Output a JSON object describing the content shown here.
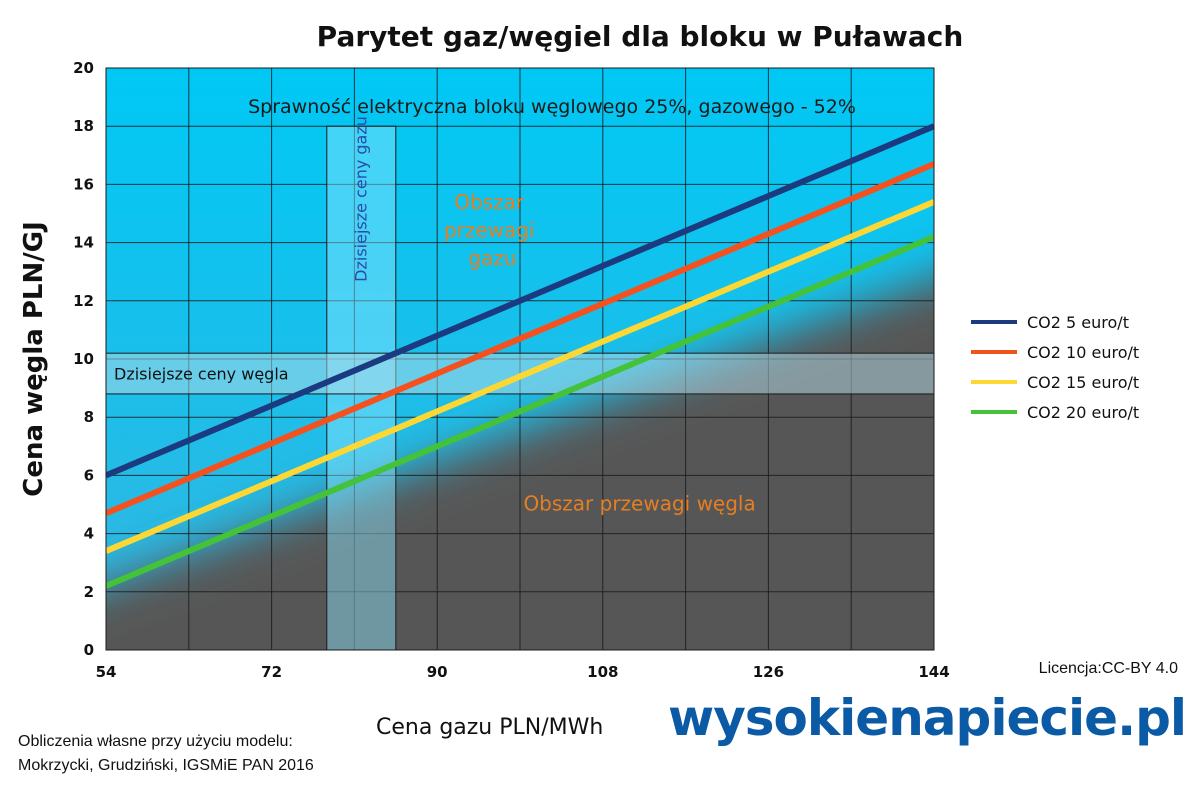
{
  "chart_data": {
    "type": "line",
    "title": "Parytet gaz/węgiel dla bloku w Puławach",
    "subtitle": "Sprawność elektryczna bloku węglowego 25%, gazowego - 52%",
    "xlabel": "Cena gazu PLN/MWh",
    "ylabel": "Cena węgla PLN/GJ",
    "xlim": [
      54,
      144
    ],
    "ylim": [
      0,
      20
    ],
    "x_ticks": [
      54,
      72,
      90,
      108,
      126,
      144
    ],
    "x_tick_labels": [
      "54",
      "72",
      "90",
      "108",
      "126",
      "144"
    ],
    "y_ticks": [
      0,
      2,
      4,
      6,
      8,
      10,
      12,
      14,
      16,
      18,
      20
    ],
    "y_tick_labels": [
      "0",
      "2",
      "4",
      "6",
      "8",
      "10",
      "12",
      "14",
      "16",
      "18",
      "20"
    ],
    "grid": true,
    "legend_position": "right",
    "series": [
      {
        "name": "CO2 5 euro/t",
        "color": "#1b3a80",
        "x": [
          54,
          144
        ],
        "y": [
          6.0,
          18.0
        ]
      },
      {
        "name": "CO2 10 euro/t",
        "color": "#f4511e",
        "x": [
          54,
          144
        ],
        "y": [
          4.7,
          16.7
        ]
      },
      {
        "name": "CO2 15 euro/t",
        "color": "#fdd835",
        "x": [
          54,
          144
        ],
        "y": [
          3.4,
          15.4
        ]
      },
      {
        "name": "CO2 20 euro/t",
        "color": "#43c23a",
        "x": [
          54,
          144
        ],
        "y": [
          2.2,
          14.2
        ]
      }
    ],
    "bands": [
      {
        "label": "Dzisiejsze ceny gazu",
        "orientation": "vertical",
        "x_range": [
          78,
          85.5
        ],
        "y_range": [
          0,
          18
        ]
      },
      {
        "label": "Dzisiejsze ceny węgla",
        "orientation": "horizontal",
        "x_range": [
          54,
          144
        ],
        "y_range": [
          8.8,
          10.2
        ]
      }
    ],
    "annotations": [
      {
        "text": "Obszar przewagi gazu",
        "lines": [
          "Obszar",
          "przewagi",
          "gazu"
        ],
        "x": 96,
        "y": 14.2,
        "color": "#e67e22"
      },
      {
        "text": "Obszar przewagi węgla",
        "x": 112,
        "y": 4.8,
        "color": "#e67e22"
      }
    ],
    "colors": {
      "gas_region": "#00c8f5",
      "coal_region": "#565656"
    }
  },
  "footer": {
    "source_line1": "Obliczenia własne przy użyciu modelu:",
    "source_line2": "Mokrzycki, Grudziński, IGSMiE PAN 2016",
    "license": "Licencja:CC-BY 4.0"
  },
  "logo": {
    "part1": "wysokie",
    "part2": "napiecie.pl"
  }
}
